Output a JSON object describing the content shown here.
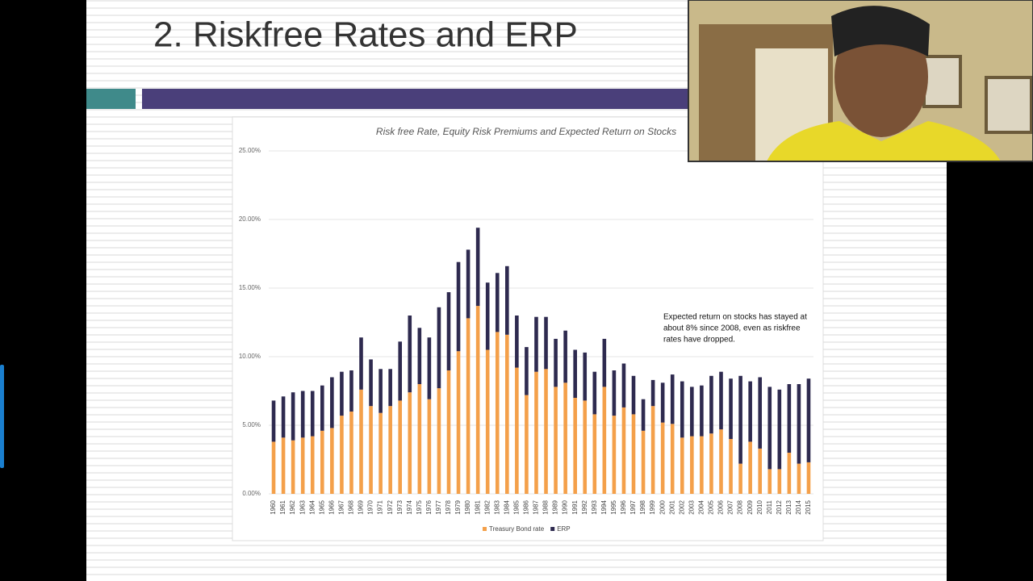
{
  "slide": {
    "title": "2. Riskfree Rates and ERP"
  },
  "chart_data": {
    "type": "stacked-bar",
    "title": "Risk free Rate, Equity Risk Premiums and Expected Return on Stocks",
    "annotations": [
      "Expected return on stocks has stayed at",
      "about 8% since 2008, even as riskfree",
      "rates have dropped."
    ],
    "categories": [
      "1960",
      "1961",
      "1962",
      "1963",
      "1964",
      "1965",
      "1966",
      "1967",
      "1968",
      "1969",
      "1970",
      "1971",
      "1972",
      "1973",
      "1974",
      "1975",
      "1976",
      "1977",
      "1978",
      "1979",
      "1980",
      "1981",
      "1982",
      "1983",
      "1984",
      "1985",
      "1986",
      "1987",
      "1988",
      "1989",
      "1990",
      "1991",
      "1992",
      "1993",
      "1994",
      "1995",
      "1996",
      "1997",
      "1998",
      "1999",
      "2000",
      "2001",
      "2002",
      "2003",
      "2004",
      "2005",
      "2006",
      "2007",
      "2008",
      "2009",
      "2010",
      "2011",
      "2012",
      "2013",
      "2014",
      "2015"
    ],
    "series": [
      {
        "name": "Treasury Bond rate",
        "color": "#f4a04a",
        "values": [
          3.8,
          4.1,
          3.9,
          4.1,
          4.2,
          4.6,
          4.8,
          5.7,
          6.0,
          7.6,
          6.4,
          5.9,
          6.4,
          6.8,
          7.4,
          8.0,
          6.9,
          7.7,
          9.0,
          10.4,
          12.8,
          13.7,
          10.5,
          11.8,
          11.6,
          9.2,
          7.2,
          8.9,
          9.1,
          7.8,
          8.1,
          7.0,
          6.8,
          5.8,
          7.8,
          5.7,
          6.3,
          5.8,
          4.6,
          6.4,
          5.2,
          5.1,
          4.1,
          4.2,
          4.2,
          4.4,
          4.7,
          4.0,
          2.2,
          3.8,
          3.3,
          1.8,
          1.8,
          3.0,
          2.2,
          2.3
        ]
      },
      {
        "name": "ERP",
        "color": "#2e2a4f",
        "values": [
          3.0,
          3.0,
          3.5,
          3.4,
          3.3,
          3.3,
          3.7,
          3.2,
          3.0,
          3.8,
          3.4,
          3.2,
          2.7,
          4.3,
          5.6,
          4.1,
          4.5,
          5.9,
          5.7,
          6.5,
          5.0,
          5.7,
          4.9,
          4.3,
          5.0,
          3.8,
          3.5,
          4.0,
          3.8,
          3.5,
          3.8,
          3.5,
          3.5,
          3.1,
          3.5,
          3.3,
          3.2,
          2.8,
          2.3,
          1.9,
          2.9,
          3.6,
          4.1,
          3.6,
          3.7,
          4.2,
          4.2,
          4.4,
          6.4,
          4.4,
          5.2,
          6.0,
          5.8,
          5.0,
          5.8,
          6.1
        ]
      }
    ],
    "ylim": [
      0,
      25
    ],
    "yticks": [
      {
        "value": 0,
        "label": "0.00%"
      },
      {
        "value": 5,
        "label": "5.00%"
      },
      {
        "value": 10,
        "label": "10.00%"
      },
      {
        "value": 15,
        "label": "15.00%"
      },
      {
        "value": 20,
        "label": "20.00%"
      },
      {
        "value": 25,
        "label": "25.00%"
      }
    ],
    "grid": true,
    "legend": "bottom"
  }
}
